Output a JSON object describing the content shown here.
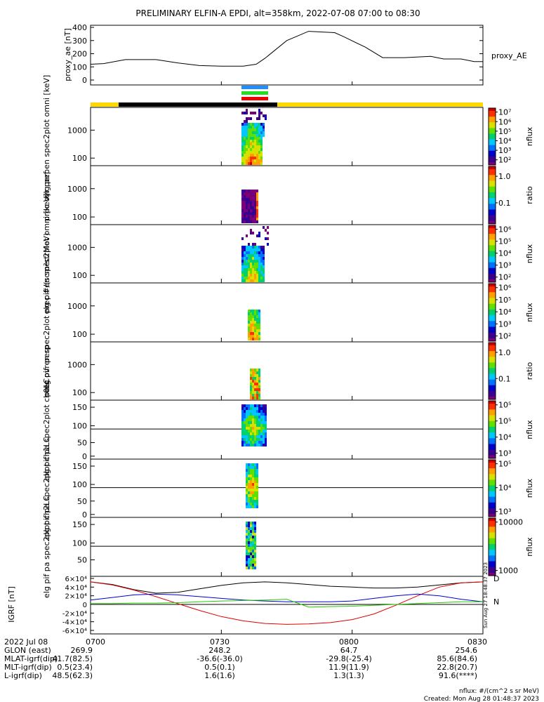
{
  "title": "PRELIMINARY ELFIN-A EPDI, alt=358km, 2022-07-08 07:00 to 08:30",
  "colors": {
    "spectrogram": [
      "#7a007a",
      "#3a0090",
      "#0000c8",
      "#0070ff",
      "#00c8ff",
      "#00d070",
      "#60e000",
      "#d8e000",
      "#ffa000",
      "#ff3000",
      "#d00000"
    ],
    "sun_bar": "#ffd700",
    "shadow_bar": "#000000",
    "legend_bars": [
      "#1f8fff",
      "#22dd22",
      "#ee0000"
    ],
    "igrf_lines": {
      "black": "#000000",
      "red": "#dd0000",
      "blue": "#0000cc",
      "green": "#22cc00"
    }
  },
  "chart_data": [
    {
      "name": "proxy_ae",
      "type": "line",
      "ylabel": "proxy_ae [nT]",
      "series_label": "proxy_AE",
      "ylim": [
        0,
        400
      ],
      "yticks": [
        "0",
        "100",
        "200",
        "300",
        "400"
      ],
      "x_minutes": [
        0,
        3,
        8,
        15,
        20,
        25,
        30,
        35,
        38,
        40,
        45,
        50,
        56,
        58,
        63,
        67,
        72,
        78,
        81,
        85,
        88,
        90
      ],
      "values": [
        120,
        125,
        155,
        155,
        130,
        110,
        105,
        105,
        120,
        165,
        300,
        370,
        360,
        330,
        250,
        170,
        170,
        180,
        160,
        160,
        140,
        140
      ]
    },
    {
      "name": "elg_pef_en_spec2plot_omni",
      "type": "heatmap",
      "ylabel": "elg pef en spec2plot omni [keV]",
      "yticks": [
        "100",
        "1000"
      ],
      "colorbar": {
        "label": "nflux",
        "ticks": [
          "10²",
          "10³",
          "10⁴",
          "10⁵",
          "10⁶",
          "10⁷"
        ]
      }
    },
    {
      "name": "prec_ovr_perp_1",
      "type": "heatmap",
      "ylabel": "prec ovr perp",
      "yticks": [
        "100",
        "1000"
      ],
      "colorbar": {
        "label": "ratio",
        "ticks": [
          "0.1",
          "1.0"
        ]
      }
    },
    {
      "name": "elg_pif_en_spec2plot_omni",
      "type": "heatmap",
      "ylabel": "elg pif en spec2plot omni [keV]",
      "yticks": [
        "100",
        "1000"
      ],
      "colorbar": {
        "label": "nflux",
        "ticks": [
          "10²",
          "10³",
          "10⁴",
          "10⁵",
          "10⁶"
        ]
      }
    },
    {
      "name": "elg_pif_en_spec2plot_prec",
      "type": "heatmap",
      "ylabel": "elg pif en spec2plot prec #/(scm²strMeV)",
      "yticks": [
        "100",
        "1000"
      ],
      "colorbar": {
        "label": "nflux",
        "ticks": [
          "10²",
          "10³",
          "10⁴",
          "10⁵",
          "10⁶"
        ]
      }
    },
    {
      "name": "prec_ovr_perp_2",
      "type": "heatmap",
      "ylabel": "prec ovr perp",
      "yticks": [
        "100",
        "1000"
      ],
      "colorbar": {
        "label": "ratio",
        "ticks": [
          "0.1",
          "1.0"
        ]
      }
    },
    {
      "name": "elg_pif_pa_spec2plot_ch0LC",
      "type": "heatmap",
      "ylabel": "elg pif pa spec2plot ch0LC",
      "yticks": [
        "0",
        "50",
        "100",
        "150"
      ],
      "colorbar": {
        "label": "nflux",
        "ticks": [
          "10³",
          "10⁴",
          "10⁵",
          "10⁵"
        ]
      }
    },
    {
      "name": "elg_pif_pa_spec2plot_ch1LC",
      "type": "heatmap",
      "ylabel": "elg pif pa spec2plot ch1LC",
      "yticks": [
        "0",
        "50",
        "100",
        "150"
      ],
      "colorbar": {
        "label": "nflux",
        "ticks": [
          "10³",
          "10⁴",
          "10⁵"
        ]
      }
    },
    {
      "name": "elg_pif_pa_spec2plot_ch2LC",
      "type": "heatmap",
      "ylabel": "elg pif pa spec2plot ch2LC",
      "yticks": [
        "50",
        "100",
        "150"
      ],
      "colorbar": {
        "label": "nflux",
        "ticks": [
          "1000",
          "10000"
        ]
      }
    },
    {
      "name": "igrf",
      "type": "line",
      "ylabel": "IGRF [nT]",
      "yticks": [
        "-6×10⁴",
        "-4×10⁴",
        "-2×10⁴",
        "0",
        "2×10⁴",
        "4×10⁴",
        "6×10⁴"
      ],
      "end_labels": [
        "D",
        "N"
      ],
      "side_stamp": "Sun Aug 27 18:48:37 2023",
      "x_minutes": [
        0,
        5,
        10,
        15,
        20,
        25,
        30,
        35,
        40,
        45,
        50,
        55,
        60,
        65,
        70,
        75,
        80,
        85,
        90
      ],
      "series": [
        {
          "color_key": "black",
          "values": [
            52000,
            46000,
            34000,
            26000,
            28000,
            36000,
            44000,
            50000,
            52000,
            50000,
            46000,
            42000,
            40000,
            38000,
            38000,
            40000,
            45000,
            50000,
            52000
          ]
        },
        {
          "color_key": "red",
          "values": [
            52000,
            45000,
            33000,
            18000,
            2000,
            -14000,
            -28000,
            -38000,
            -44000,
            -46000,
            -45000,
            -42000,
            -35000,
            -22000,
            -2000,
            20000,
            40000,
            50000,
            52000
          ]
        },
        {
          "color_key": "blue",
          "values": [
            10000,
            16000,
            22000,
            24000,
            22000,
            18000,
            14000,
            10000,
            8000,
            6000,
            6000,
            6000,
            8000,
            14000,
            20000,
            24000,
            20000,
            12000,
            6000
          ]
        },
        {
          "color_key": "green",
          "values": [
            2000,
            2000,
            3000,
            3000,
            4000,
            6000,
            8000,
            9000,
            10000,
            12000,
            -6000,
            -5000,
            -4000,
            -2000,
            0,
            2000,
            4000,
            6000,
            6000
          ]
        }
      ]
    }
  ],
  "bottom_labels": {
    "row_headers": [
      "2022 Jul 08",
      "GLON (east)",
      "MLAT-igrf(dip)",
      "MLT-igrf(dip)",
      "L-igrf(dip)"
    ],
    "time_ticks": [
      "0700",
      "0730",
      "0800",
      "0830"
    ],
    "columns": [
      [
        "269.9",
        "41.7(82.5)",
        "0.5(23.4)",
        "48.5(62.3)"
      ],
      [
        "248.2",
        "-36.6(-36.0)",
        "0.5(0.1)",
        "1.6(1.6)"
      ],
      [
        "64.7",
        "-29.8(-25.4)",
        "11.9(11.9)",
        "1.3(1.3)"
      ],
      [
        "254.6",
        "85.6(84.6)",
        "22.8(20.7)",
        "91.6(****)"
      ]
    ]
  },
  "footer": {
    "units": "nflux: #/(cm^2 s sr MeV)",
    "created": "Created: Mon Aug 28 01:48:37 2023"
  }
}
